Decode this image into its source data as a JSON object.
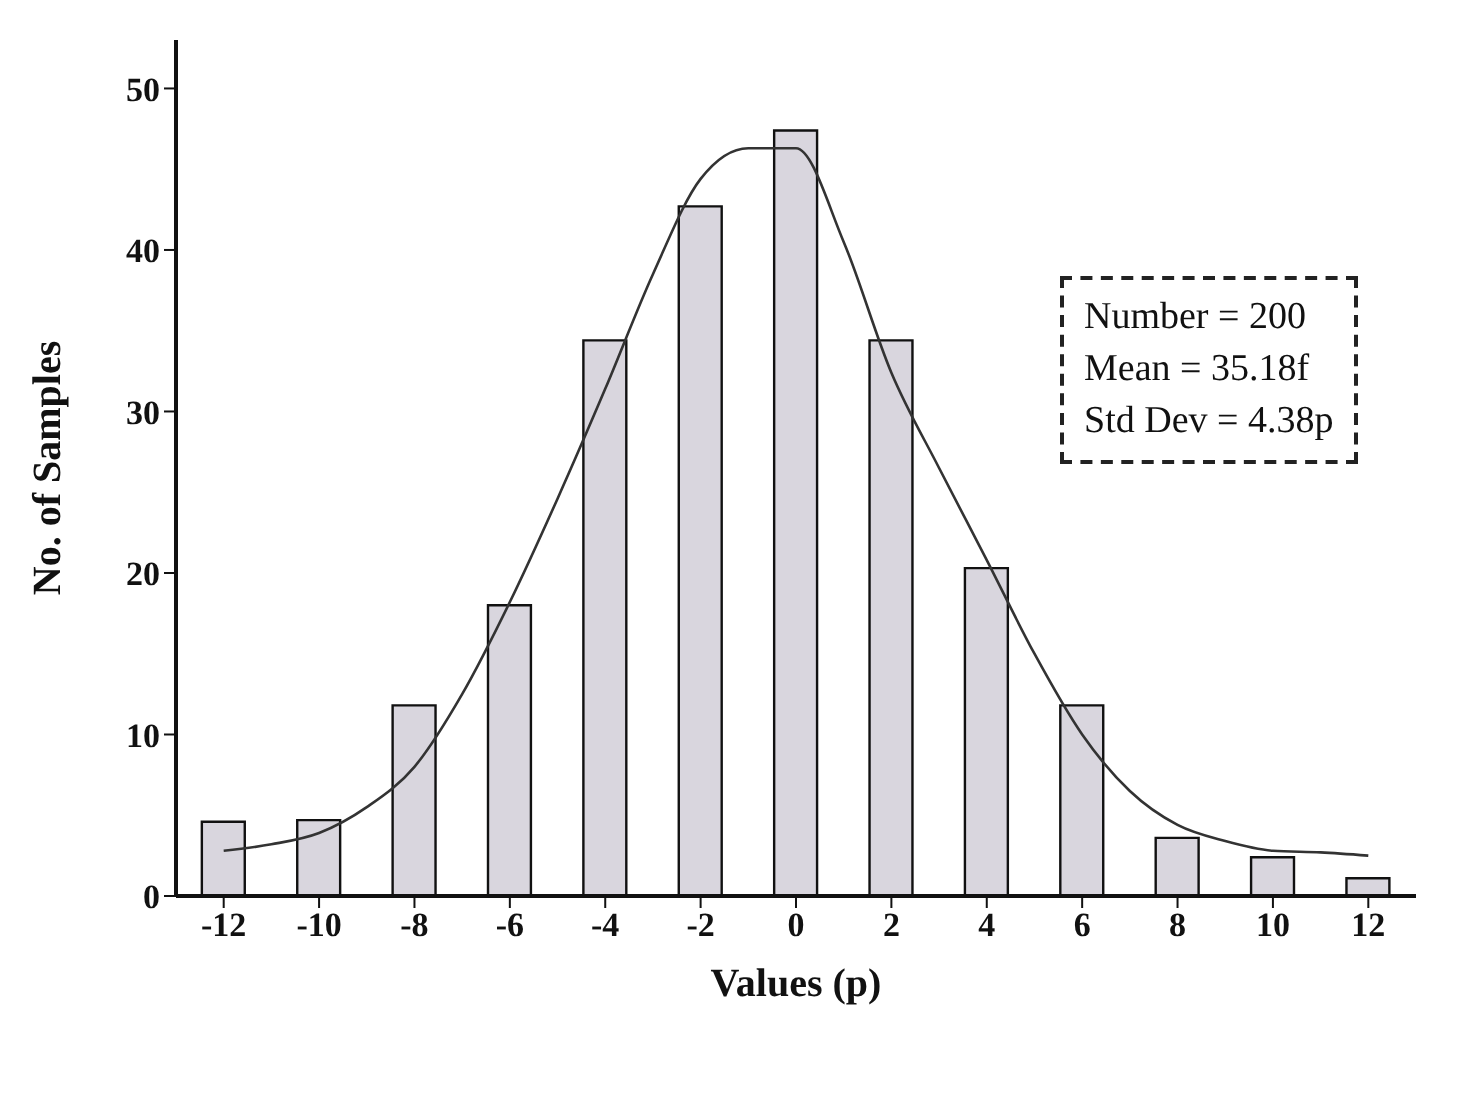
{
  "chart_data": {
    "type": "histogram",
    "xlabel": "Values (p)",
    "ylabel": "No. of Samples",
    "bins": [
      -13,
      -11,
      -9,
      -7,
      -5,
      -3,
      -1,
      1,
      3,
      5,
      7,
      9,
      11,
      13
    ],
    "values": [
      4.6,
      4.7,
      11.8,
      18.0,
      34.4,
      42.7,
      47.4,
      34.4,
      20.3,
      11.8,
      3.6,
      2.4,
      1.1
    ],
    "color": "#d9d6de",
    "series": [
      {
        "type": "line",
        "color": "#333333",
        "x": [
          -12,
          -11,
          -10,
          -9,
          -8,
          -7,
          -6,
          -5,
          -4,
          -3,
          -2,
          -1,
          0,
          1,
          2,
          3,
          4,
          5,
          6,
          7,
          8,
          9,
          10,
          11,
          12
        ],
        "values": [
          2.8,
          3.2,
          3.9,
          5.5,
          8.0,
          12.5,
          18.2,
          24.6,
          31.4,
          38.5,
          44.4,
          46.3,
          46.3,
          40.5,
          32.4,
          26.5,
          20.8,
          15,
          10.0,
          6.5,
          4.4,
          3.4,
          2.8,
          2.7,
          2.5
        ]
      }
    ],
    "xlim": [
      -13,
      13
    ],
    "xticks": [
      -12,
      -10,
      -8,
      -6,
      -4,
      -2,
      0,
      2,
      4,
      6,
      8,
      10,
      12
    ],
    "ylim": [
      0,
      53
    ],
    "yticks": [
      0,
      10,
      20,
      30,
      40,
      50
    ],
    "annotations": [
      "Number = 200",
      "Mean = 35.18f",
      "Std Dev = 4.38p"
    ],
    "grid": false,
    "marker": "none",
    "line_style": "solid"
  }
}
